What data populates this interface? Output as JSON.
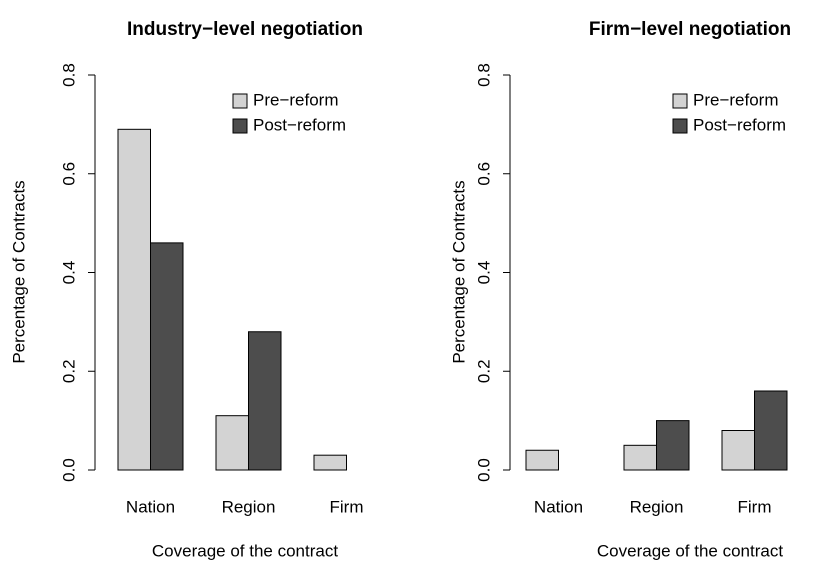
{
  "chart_data": [
    {
      "type": "bar",
      "title": "Industry−level negotiation",
      "x_label": "Coverage of the contract",
      "y_label": "Percentage of Contracts",
      "categories": [
        "Nation",
        "Region",
        "Firm"
      ],
      "series": [
        {
          "name": "Pre−reform",
          "color": "#d3d3d3",
          "values": [
            0.69,
            0.11,
            0.03
          ]
        },
        {
          "name": "Post−reform",
          "color": "#4d4d4d",
          "values": [
            0.46,
            0.28,
            0
          ]
        }
      ],
      "ylim": [
        0,
        0.8
      ],
      "yticks": [
        {
          "value": 0,
          "label": "0.0"
        },
        0.2,
        0.4,
        0.6,
        0.8
      ],
      "legend": "top-right"
    },
    {
      "type": "bar",
      "title": "Firm−level negotiation",
      "x_label": "Coverage of the contract",
      "y_label": "Percentage of Contracts",
      "categories": [
        "Nation",
        "Region",
        "Firm"
      ],
      "series": [
        {
          "name": "Pre−reform",
          "color": "#d3d3d3",
          "values": [
            0.04,
            0.05,
            0.08
          ]
        },
        {
          "name": "Post−reform",
          "color": "#4d4d4d",
          "values": [
            0,
            0.1,
            0.16
          ]
        }
      ],
      "ylim": [
        0,
        0.8
      ],
      "yticks": [
        {
          "value": 0,
          "label": "0.0"
        },
        0.2,
        0.4,
        0.6,
        0.8
      ],
      "legend": "top-right"
    }
  ]
}
